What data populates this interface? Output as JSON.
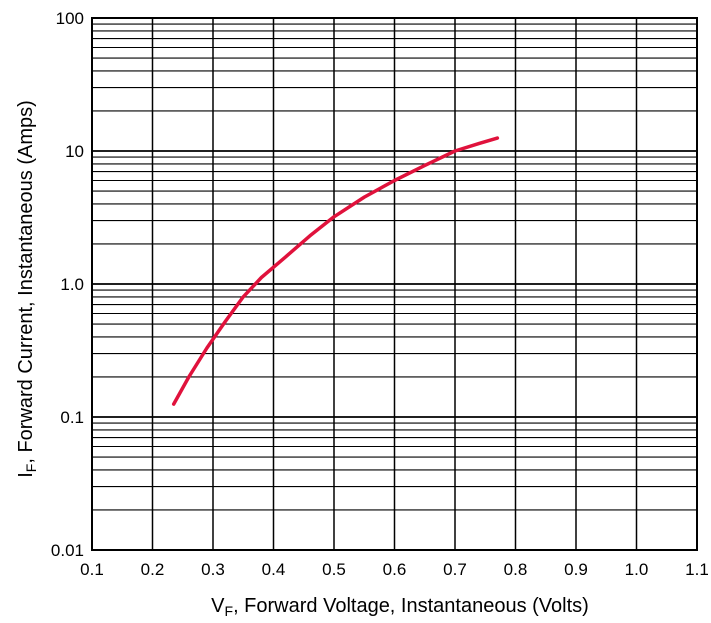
{
  "chart_data": {
    "type": "line",
    "xlabel": {
      "main": "V",
      "sub": "F",
      "rest": ", Forward Voltage, Instantaneous (Volts)"
    },
    "ylabel": {
      "main": "I",
      "sub": "F",
      "rest": ", Forward Current, Instantaneous (Amps)"
    },
    "xlim": [
      0.1,
      1.1
    ],
    "ylim": [
      0.01,
      100
    ],
    "y_scale": "log",
    "grid": true,
    "x_ticks": [
      "0.1",
      "0.2",
      "0.3",
      "0.4",
      "0.5",
      "0.6",
      "0.7",
      "0.8",
      "0.9",
      "1.0",
      "1.1"
    ],
    "y_ticks": [
      {
        "value": 0.01,
        "label": "0.01"
      },
      {
        "value": 0.1,
        "label": "0.1"
      },
      {
        "value": 1,
        "label": "1.0"
      },
      {
        "value": 10,
        "label": "10"
      },
      {
        "value": 100,
        "label": "100"
      }
    ],
    "series": [
      {
        "color": "#e0123c",
        "x": [
          0.235,
          0.26,
          0.29,
          0.32,
          0.35,
          0.38,
          0.42,
          0.46,
          0.5,
          0.55,
          0.6,
          0.65,
          0.7,
          0.74,
          0.77
        ],
        "y": [
          0.125,
          0.2,
          0.33,
          0.52,
          0.8,
          1.12,
          1.6,
          2.3,
          3.2,
          4.5,
          6.0,
          7.8,
          10.0,
          11.4,
          12.5
        ]
      }
    ]
  }
}
